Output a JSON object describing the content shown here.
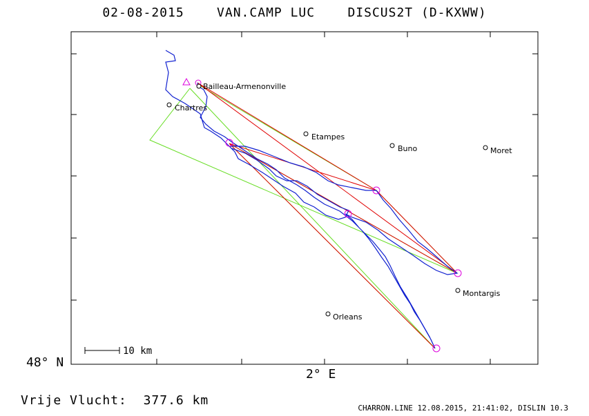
{
  "header": {
    "date": "02-08-2015",
    "pilot": "VAN.CAMP LUC",
    "glider": "DISCUS2T (D-KXWW)"
  },
  "axes": {
    "lat_label": "48° N",
    "lon_label": "2° E"
  },
  "scale_bar": {
    "label": "10 km"
  },
  "places": [
    {
      "name": "Bailleau-Armenonville"
    },
    {
      "name": "Chartres"
    },
    {
      "name": "Etampes"
    },
    {
      "name": "Buno"
    },
    {
      "name": "Moret"
    },
    {
      "name": "Montargis"
    },
    {
      "name": "Orleans"
    }
  ],
  "summary": {
    "distance_label": "Vrije Vlucht:",
    "distance_value": "377.6 km"
  },
  "footer": {
    "program_info": "CHARRON.LINE 12.08.2015, 21:41:02, DISLIN 10.3"
  },
  "colors": {
    "track": "#1020d0",
    "task": "#e00000",
    "sector": "#66dd22",
    "turnpoint": "#dd00dd",
    "frame": "#000000"
  }
}
